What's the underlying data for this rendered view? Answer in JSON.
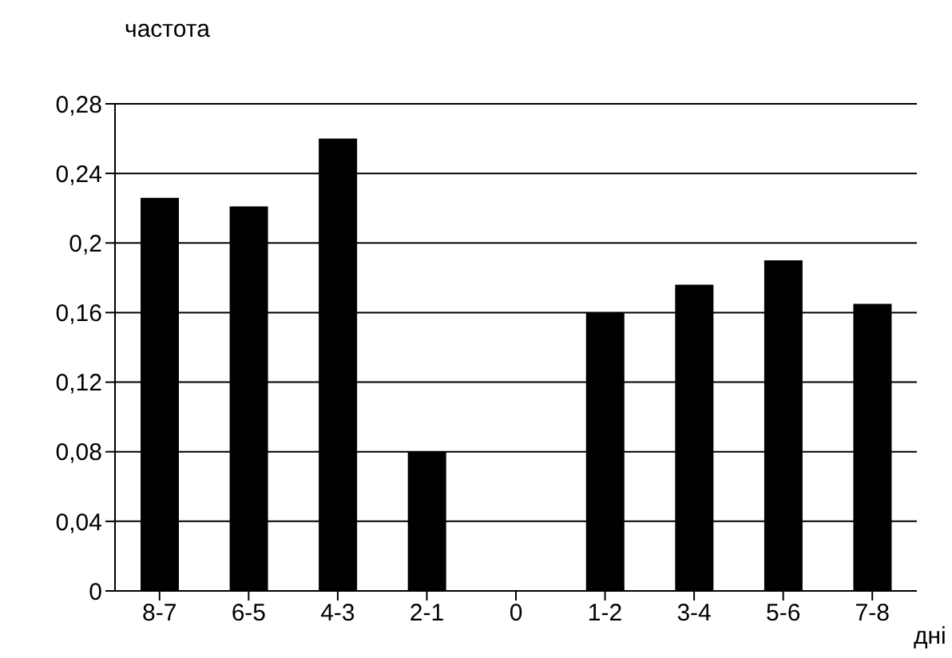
{
  "chart_data": {
    "type": "bar",
    "ylabel": "частота",
    "xlabel": "дні",
    "categories": [
      "8-7",
      "6-5",
      "4-3",
      "2-1",
      "0",
      "1-2",
      "3-4",
      "5-6",
      "7-8"
    ],
    "values": [
      0.226,
      0.221,
      0.26,
      0.08,
      0,
      0.16,
      0.176,
      0.19,
      0.165
    ],
    "color": "#000000",
    "ylim": [
      0,
      0.28
    ],
    "yticks": [
      {
        "value": 0,
        "label": "0"
      },
      {
        "value": 0.04,
        "label": "0,04"
      },
      {
        "value": 0.08,
        "label": "0,08"
      },
      {
        "value": 0.12,
        "label": "0,12"
      },
      {
        "value": 0.16,
        "label": "0,16"
      },
      {
        "value": 0.2,
        "label": "0,2"
      },
      {
        "value": 0.24,
        "label": "0,24"
      },
      {
        "value": 0.28,
        "label": "0,28"
      }
    ],
    "grid": "y"
  }
}
